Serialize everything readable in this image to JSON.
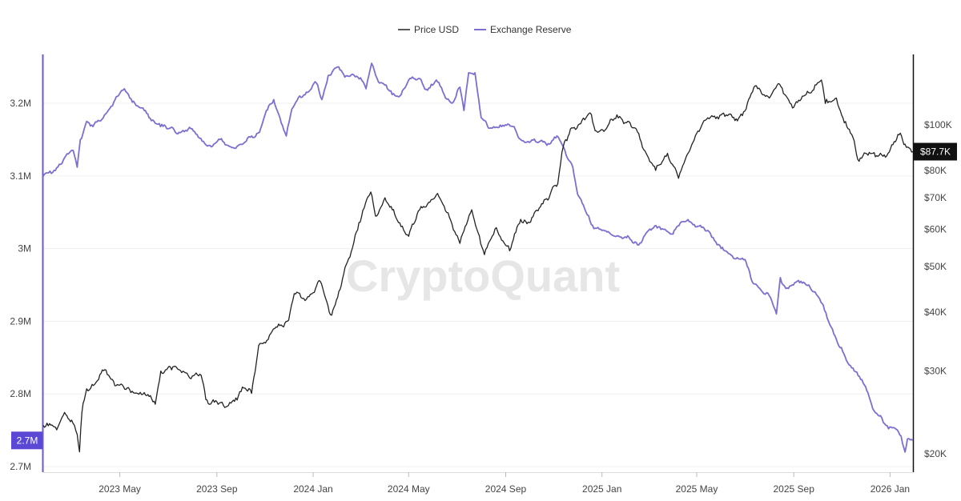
{
  "chart_data": {
    "type": "line",
    "title": "",
    "watermark": "CryptoQuant",
    "legend": {
      "placement": "top-center"
    },
    "grid": true,
    "x_axis": {
      "type": "date",
      "ticks": [
        "2023 May",
        "2023 Sep",
        "2024 Jan",
        "2024 May",
        "2024 Sep",
        "2025 Jan",
        "2025 May",
        "2025 Sep",
        "2026 Jan"
      ],
      "tick_dates": [
        "2023-05-01",
        "2023-09-01",
        "2024-01-01",
        "2024-05-01",
        "2024-09-01",
        "2025-01-01",
        "2025-05-01",
        "2025-09-01",
        "2026-01-01"
      ],
      "range": [
        "2023-01-24",
        "2026-01-30"
      ]
    },
    "y_left": {
      "label": "",
      "ticks": [
        "3.2M",
        "3.1M",
        "3M",
        "2.9M",
        "2.8M",
        "2.7M"
      ],
      "tick_values": [
        3200000,
        3100000,
        3000000,
        2900000,
        2800000,
        2700000
      ],
      "range": [
        2700000,
        3265000
      ],
      "current_label": "2.7M",
      "current_value": 2736000
    },
    "y_right": {
      "label": "",
      "scale": "log",
      "ticks": [
        "$100K",
        "$80K",
        "$70K",
        "$60K",
        "$50K",
        "$40K",
        "$30K",
        "$20K"
      ],
      "tick_values": [
        100000,
        80000,
        70000,
        60000,
        50000,
        40000,
        30000,
        20000
      ],
      "range": [
        18800,
        140000
      ],
      "current_label": "$87.7K",
      "current_value": 87700
    },
    "colors": {
      "price": "#222222",
      "reserve": "#7b6fd0",
      "reserve_badge": "#5b49d6",
      "price_badge": "#111111",
      "left_axis": "#6a5ad6"
    },
    "series": [
      {
        "name": "Exchange Reserve",
        "axis": "left",
        "points": [
          [
            "2023-01-24",
            3100000
          ],
          [
            "2023-02-05",
            3105000
          ],
          [
            "2023-02-20",
            3125000
          ],
          [
            "2023-03-03",
            3135000
          ],
          [
            "2023-03-08",
            3112000
          ],
          [
            "2023-03-12",
            3150000
          ],
          [
            "2023-03-20",
            3175000
          ],
          [
            "2023-03-28",
            3168000
          ],
          [
            "2023-04-10",
            3180000
          ],
          [
            "2023-04-25",
            3205000
          ],
          [
            "2023-05-05",
            3218000
          ],
          [
            "2023-05-12",
            3212000
          ],
          [
            "2023-05-20",
            3200000
          ],
          [
            "2023-06-01",
            3190000
          ],
          [
            "2023-06-10",
            3176000
          ],
          [
            "2023-06-20",
            3172000
          ],
          [
            "2023-07-01",
            3165000
          ],
          [
            "2023-07-15",
            3160000
          ],
          [
            "2023-07-30",
            3165000
          ],
          [
            "2023-08-10",
            3152000
          ],
          [
            "2023-08-25",
            3140000
          ],
          [
            "2023-09-05",
            3150000
          ],
          [
            "2023-09-15",
            3142000
          ],
          [
            "2023-09-25",
            3138000
          ],
          [
            "2023-10-05",
            3145000
          ],
          [
            "2023-10-15",
            3155000
          ],
          [
            "2023-10-25",
            3160000
          ],
          [
            "2023-11-01",
            3184000
          ],
          [
            "2023-11-12",
            3205000
          ],
          [
            "2023-11-20",
            3180000
          ],
          [
            "2023-11-28",
            3155000
          ],
          [
            "2023-12-05",
            3192000
          ],
          [
            "2023-12-15",
            3210000
          ],
          [
            "2023-12-25",
            3215000
          ],
          [
            "2024-01-05",
            3228000
          ],
          [
            "2024-01-12",
            3205000
          ],
          [
            "2024-01-20",
            3238000
          ],
          [
            "2024-02-01",
            3250000
          ],
          [
            "2024-02-10",
            3236000
          ],
          [
            "2024-02-20",
            3240000
          ],
          [
            "2024-03-01",
            3235000
          ],
          [
            "2024-03-08",
            3220000
          ],
          [
            "2024-03-15",
            3255000
          ],
          [
            "2024-03-22",
            3234000
          ],
          [
            "2024-04-01",
            3225000
          ],
          [
            "2024-04-10",
            3212000
          ],
          [
            "2024-04-20",
            3210000
          ],
          [
            "2024-05-01",
            3232000
          ],
          [
            "2024-05-15",
            3234000
          ],
          [
            "2024-05-25",
            3218000
          ],
          [
            "2024-06-05",
            3232000
          ],
          [
            "2024-06-15",
            3212000
          ],
          [
            "2024-06-25",
            3200000
          ],
          [
            "2024-07-05",
            3222000
          ],
          [
            "2024-07-10",
            3190000
          ],
          [
            "2024-07-16",
            3242000
          ],
          [
            "2024-07-24",
            3242000
          ],
          [
            "2024-08-01",
            3180000
          ],
          [
            "2024-08-10",
            3166000
          ],
          [
            "2024-08-25",
            3170000
          ],
          [
            "2024-09-10",
            3168000
          ],
          [
            "2024-09-20",
            3150000
          ],
          [
            "2024-10-01",
            3146000
          ],
          [
            "2024-10-15",
            3148000
          ],
          [
            "2024-10-28",
            3145000
          ],
          [
            "2024-11-05",
            3155000
          ],
          [
            "2024-11-15",
            3135000
          ],
          [
            "2024-11-25",
            3112000
          ],
          [
            "2024-12-01",
            3075000
          ],
          [
            "2024-12-10",
            3055000
          ],
          [
            "2024-12-20",
            3032000
          ],
          [
            "2025-01-01",
            3025000
          ],
          [
            "2025-01-15",
            3018000
          ],
          [
            "2025-02-01",
            3015000
          ],
          [
            "2025-02-15",
            3005000
          ],
          [
            "2025-03-01",
            3025000
          ],
          [
            "2025-03-15",
            3030000
          ],
          [
            "2025-04-01",
            3020000
          ],
          [
            "2025-04-10",
            3035000
          ],
          [
            "2025-04-20",
            3040000
          ],
          [
            "2025-05-01",
            3030000
          ],
          [
            "2025-05-15",
            3025000
          ],
          [
            "2025-06-01",
            3000000
          ],
          [
            "2025-06-15",
            2990000
          ],
          [
            "2025-07-01",
            2985000
          ],
          [
            "2025-07-10",
            2955000
          ],
          [
            "2025-07-20",
            2945000
          ],
          [
            "2025-08-01",
            2935000
          ],
          [
            "2025-08-10",
            2910000
          ],
          [
            "2025-08-15",
            2960000
          ],
          [
            "2025-08-22",
            2945000
          ],
          [
            "2025-08-30",
            2950000
          ],
          [
            "2025-09-10",
            2955000
          ],
          [
            "2025-09-20",
            2950000
          ],
          [
            "2025-10-01",
            2935000
          ],
          [
            "2025-10-10",
            2915000
          ],
          [
            "2025-10-25",
            2875000
          ],
          [
            "2025-11-10",
            2840000
          ],
          [
            "2025-11-20",
            2830000
          ],
          [
            "2025-12-01",
            2810000
          ],
          [
            "2025-12-10",
            2780000
          ],
          [
            "2025-12-20",
            2770000
          ],
          [
            "2025-12-30",
            2752000
          ],
          [
            "2026-01-08",
            2752000
          ],
          [
            "2026-01-15",
            2742000
          ],
          [
            "2026-01-20",
            2720000
          ],
          [
            "2026-01-23",
            2738000
          ],
          [
            "2026-01-30",
            2736000
          ]
        ]
      },
      {
        "name": "Price USD",
        "axis": "right",
        "points": [
          [
            "2023-01-24",
            23000
          ],
          [
            "2023-02-01",
            23200
          ],
          [
            "2023-02-10",
            22500
          ],
          [
            "2023-02-20",
            24500
          ],
          [
            "2023-03-01",
            23600
          ],
          [
            "2023-03-08",
            22000
          ],
          [
            "2023-03-11",
            20200
          ],
          [
            "2023-03-14",
            24500
          ],
          [
            "2023-03-20",
            27500
          ],
          [
            "2023-04-01",
            28400
          ],
          [
            "2023-04-12",
            30200
          ],
          [
            "2023-04-20",
            28800
          ],
          [
            "2023-05-01",
            28000
          ],
          [
            "2023-05-15",
            27000
          ],
          [
            "2023-06-01",
            27000
          ],
          [
            "2023-06-15",
            25500
          ],
          [
            "2023-06-22",
            30000
          ],
          [
            "2023-07-01",
            30500
          ],
          [
            "2023-07-15",
            30200
          ],
          [
            "2023-08-01",
            29300
          ],
          [
            "2023-08-12",
            29400
          ],
          [
            "2023-08-18",
            26100
          ],
          [
            "2023-09-01",
            25800
          ],
          [
            "2023-09-11",
            25100
          ],
          [
            "2023-09-25",
            26300
          ],
          [
            "2023-10-05",
            27600
          ],
          [
            "2023-10-15",
            26900
          ],
          [
            "2023-10-24",
            34000
          ],
          [
            "2023-11-05",
            35000
          ],
          [
            "2023-11-15",
            37200
          ],
          [
            "2023-12-01",
            38500
          ],
          [
            "2023-12-08",
            43800
          ],
          [
            "2023-12-20",
            42800
          ],
          [
            "2024-01-01",
            44000
          ],
          [
            "2024-01-10",
            46500
          ],
          [
            "2024-01-23",
            39500
          ],
          [
            "2024-02-01",
            43000
          ],
          [
            "2024-02-15",
            52000
          ],
          [
            "2024-02-28",
            62000
          ],
          [
            "2024-03-14",
            72000
          ],
          [
            "2024-03-20",
            64000
          ],
          [
            "2024-04-01",
            70000
          ],
          [
            "2024-04-15",
            63500
          ],
          [
            "2024-05-01",
            58000
          ],
          [
            "2024-05-15",
            66000
          ],
          [
            "2024-06-05",
            71000
          ],
          [
            "2024-06-20",
            65000
          ],
          [
            "2024-07-05",
            56000
          ],
          [
            "2024-07-20",
            66000
          ],
          [
            "2024-08-05",
            53000
          ],
          [
            "2024-08-20",
            60500
          ],
          [
            "2024-09-06",
            54000
          ],
          [
            "2024-09-20",
            63000
          ],
          [
            "2024-10-01",
            62000
          ],
          [
            "2024-10-15",
            67000
          ],
          [
            "2024-10-29",
            72500
          ],
          [
            "2024-11-06",
            75000
          ],
          [
            "2024-11-13",
            90000
          ],
          [
            "2024-11-22",
            98000
          ],
          [
            "2024-12-05",
            100500
          ],
          [
            "2024-12-17",
            106000
          ],
          [
            "2024-12-25",
            97000
          ],
          [
            "2025-01-05",
            97500
          ],
          [
            "2025-01-20",
            105000
          ],
          [
            "2025-02-01",
            101000
          ],
          [
            "2025-02-15",
            96500
          ],
          [
            "2025-03-01",
            85000
          ],
          [
            "2025-03-10",
            80000
          ],
          [
            "2025-03-25",
            87000
          ],
          [
            "2025-04-08",
            77000
          ],
          [
            "2025-04-20",
            87000
          ],
          [
            "2025-05-01",
            96000
          ],
          [
            "2025-05-15",
            103500
          ],
          [
            "2025-06-01",
            105000
          ],
          [
            "2025-06-20",
            103000
          ],
          [
            "2025-07-01",
            107000
          ],
          [
            "2025-07-14",
            121000
          ],
          [
            "2025-08-01",
            114000
          ],
          [
            "2025-08-14",
            122000
          ],
          [
            "2025-09-01",
            109000
          ],
          [
            "2025-09-15",
            115500
          ],
          [
            "2025-10-06",
            124500
          ],
          [
            "2025-10-11",
            111000
          ],
          [
            "2025-10-25",
            114000
          ],
          [
            "2025-11-04",
            101000
          ],
          [
            "2025-11-15",
            94000
          ],
          [
            "2025-11-21",
            84500
          ],
          [
            "2025-12-01",
            87000
          ],
          [
            "2025-12-15",
            86000
          ],
          [
            "2025-12-31",
            87500
          ],
          [
            "2026-01-14",
            96000
          ],
          [
            "2026-01-20",
            91000
          ],
          [
            "2026-01-30",
            87700
          ]
        ]
      }
    ]
  }
}
